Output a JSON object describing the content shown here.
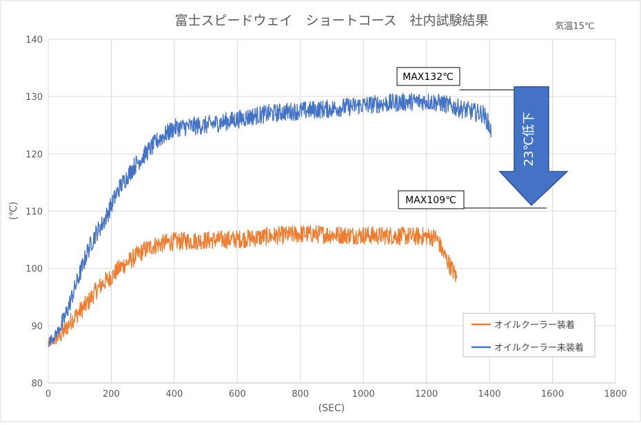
{
  "chart_data": {
    "type": "line",
    "title": "富士スピードウェイ　ショートコース　社内試験結果",
    "subtitle": "気温15℃",
    "xlabel": "(SEC)",
    "ylabel": "(℃)",
    "xlim": [
      0,
      1800
    ],
    "ylim": [
      80,
      140
    ],
    "x_ticks": [
      "0",
      "200",
      "400",
      "600",
      "800",
      "1000",
      "1200",
      "1400",
      "1600",
      "1800"
    ],
    "y_ticks": [
      "80",
      "90",
      "100",
      "110",
      "120",
      "130",
      "140"
    ],
    "grid": true,
    "legend_position": "bottom-right",
    "series": [
      {
        "name": "オイルクーラー装着",
        "color": "#ED7D31",
        "x": [
          0,
          25,
          50,
          75,
          100,
          125,
          150,
          175,
          200,
          225,
          250,
          275,
          300,
          325,
          350,
          375,
          400,
          450,
          500,
          550,
          600,
          650,
          700,
          750,
          800,
          850,
          900,
          950,
          1000,
          1050,
          1100,
          1150,
          1200,
          1230,
          1240,
          1250,
          1260,
          1270,
          1280,
          1290,
          1298
        ],
        "y": [
          87,
          87.5,
          89,
          91,
          92.5,
          94,
          96,
          97.5,
          98.5,
          100,
          101,
          102,
          103,
          103.8,
          104.2,
          104.5,
          104.7,
          104.8,
          104.9,
          105,
          105.1,
          105.3,
          105.6,
          105.8,
          106,
          106,
          105.9,
          105.8,
          105.8,
          105.7,
          105.7,
          105.6,
          105.6,
          105.4,
          104.5,
          103,
          102,
          101,
          100,
          99,
          98
        ]
      },
      {
        "name": "オイルクーラー未装着",
        "color": "#4472C4",
        "x": [
          0,
          25,
          50,
          75,
          100,
          125,
          150,
          175,
          200,
          225,
          250,
          275,
          300,
          325,
          350,
          375,
          400,
          450,
          500,
          550,
          600,
          650,
          700,
          750,
          800,
          850,
          900,
          950,
          1000,
          1050,
          1100,
          1150,
          1200,
          1250,
          1300,
          1350,
          1380,
          1395,
          1405
        ],
        "y": [
          87,
          88.5,
          91,
          95,
          99,
          103,
          106,
          108,
          111,
          114,
          116,
          118,
          119.5,
          121,
          122.5,
          123.5,
          124.5,
          124.8,
          125,
          125.5,
          126,
          126.6,
          127,
          127.3,
          127.5,
          127.7,
          127.9,
          128.2,
          128.5,
          128.7,
          128.9,
          129.1,
          129.2,
          128.8,
          128,
          127.3,
          127,
          125.5,
          124
        ]
      }
    ],
    "annotations": [
      {
        "text": "MAX132℃",
        "y": 132,
        "x_start": 1100,
        "x_end": 1575
      },
      {
        "text": "MAX109℃",
        "y": 110.5,
        "x_start": 1100,
        "x_end": 1575
      },
      {
        "text": "23℃低下"
      }
    ],
    "arrow_color": "#4472C4"
  }
}
